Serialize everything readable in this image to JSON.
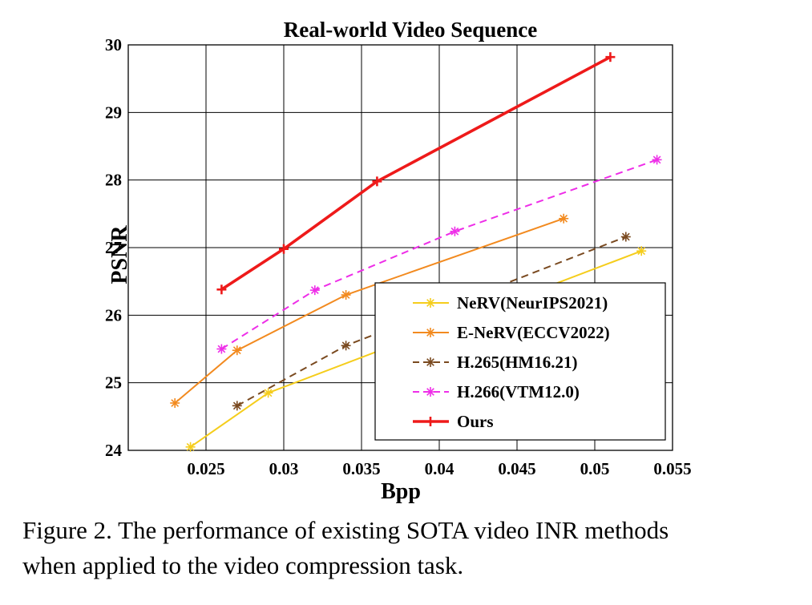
{
  "caption": {
    "line1": "Figure 2. The performance of existing SOTA video INR methods",
    "line2": "when applied to the video compression task."
  },
  "chart_data": {
    "type": "line",
    "title": "Real-world Video Sequence",
    "xlabel": "Bpp",
    "ylabel": "PSNR",
    "xlim": [
      0.02,
      0.055
    ],
    "ylim": [
      24,
      30
    ],
    "xticks": [
      0.025,
      0.03,
      0.035,
      0.04,
      0.045,
      0.05,
      0.055
    ],
    "xtick_labels": [
      "0.025",
      "0.03",
      "0.035",
      "0.04",
      "0.045",
      "0.05",
      "0.055"
    ],
    "yticks": [
      24,
      25,
      26,
      27,
      28,
      29,
      30
    ],
    "ytick_labels": [
      "24",
      "25",
      "26",
      "27",
      "28",
      "29",
      "30"
    ],
    "grid": true,
    "legend_position": "bottom-right",
    "series": [
      {
        "name": "NeRV(NeurIPS2021)",
        "color": "#f5cd1c",
        "dash": "solid",
        "marker": "asterisk",
        "x": [
          0.024,
          0.029,
          0.053
        ],
        "y": [
          24.05,
          24.85,
          26.95
        ]
      },
      {
        "name": "E-NeRV(ECCV2022)",
        "color": "#f28a1f",
        "dash": "solid",
        "marker": "asterisk",
        "x": [
          0.023,
          0.027,
          0.034,
          0.048
        ],
        "y": [
          24.7,
          25.48,
          26.3,
          27.43
        ]
      },
      {
        "name": "H.265(HM16.21)",
        "color": "#7a4a20",
        "dash": "dashed",
        "marker": "asterisk",
        "x": [
          0.027,
          0.034,
          0.052
        ],
        "y": [
          24.66,
          25.55,
          27.16
        ]
      },
      {
        "name": "H.266(VTM12.0)",
        "color": "#ee2ee8",
        "dash": "dashed",
        "marker": "asterisk",
        "x": [
          0.026,
          0.032,
          0.041,
          0.054
        ],
        "y": [
          25.5,
          26.37,
          27.24,
          28.3
        ]
      },
      {
        "name": "Ours",
        "color": "#ee1a1a",
        "dash": "solid",
        "marker": "plus",
        "x": [
          0.026,
          0.03,
          0.036,
          0.051
        ],
        "y": [
          26.38,
          26.98,
          27.98,
          29.82
        ]
      }
    ]
  }
}
